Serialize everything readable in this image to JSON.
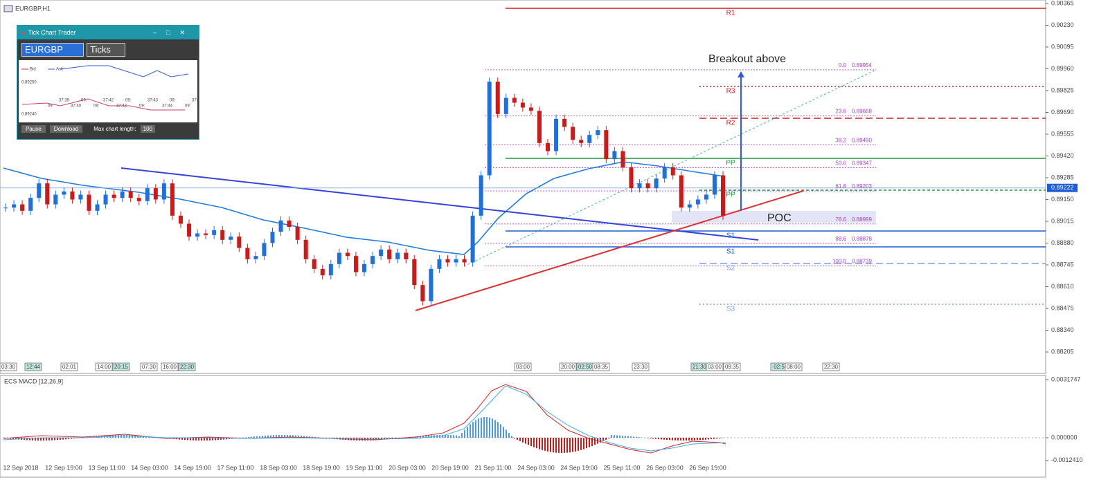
{
  "window": {
    "title": "EURGBP,H1"
  },
  "chart": {
    "type": "candlestick",
    "closes": [
      0.891,
      0.8912,
      0.8908,
      0.8916,
      0.8925,
      0.8912,
      0.8918,
      0.892,
      0.8915,
      0.8918,
      0.8908,
      0.8912,
      0.8918,
      0.8916,
      0.892,
      0.8916,
      0.8914,
      0.8922,
      0.8915,
      0.8925,
      0.8905,
      0.89,
      0.8892,
      0.8894,
      0.8893,
      0.8896,
      0.889,
      0.8892,
      0.8885,
      0.8878,
      0.888,
      0.8888,
      0.8895,
      0.8902,
      0.8898,
      0.889,
      0.8878,
      0.8872,
      0.8868,
      0.8875,
      0.8882,
      0.888,
      0.887,
      0.8875,
      0.888,
      0.8884,
      0.8878,
      0.8882,
      0.8878,
      0.8862,
      0.8852,
      0.8872,
      0.8878,
      0.8876,
      0.8878,
      0.8876,
      0.8905,
      0.893,
      0.8988,
      0.8968,
      0.8978,
      0.8975,
      0.8972,
      0.897,
      0.895,
      0.8945,
      0.8965,
      0.896,
      0.8952,
      0.895,
      0.8955,
      0.8958,
      0.894,
      0.8945,
      0.8935,
      0.8922,
      0.8925,
      0.8922,
      0.8928,
      0.8935,
      0.893,
      0.891,
      0.8912,
      0.8915,
      0.8918,
      0.893,
      0.8905
    ],
    "ylim": [
      0.90365,
      0.88205
    ],
    "yticks": [
      0.90365,
      {
        "value": 0.9023,
        "label": "0.90230"
      },
      0.90095,
      {
        "value": 0.8996,
        "label": "0.89960"
      },
      0.89825,
      {
        "value": 0.8969,
        "label": "0.89690"
      },
      0.89555,
      {
        "value": 0.8942,
        "label": "0.89420"
      },
      0.89285,
      {
        "value": 0.8915,
        "label": "0.89150"
      },
      0.89015,
      {
        "value": 0.8888,
        "label": "0.88880"
      },
      0.88745,
      {
        "value": 0.8861,
        "label": "0.88610"
      },
      0.88475,
      {
        "value": 0.8834,
        "label": "0.88340"
      },
      0.88205
    ],
    "current_price": 0.89222,
    "x_labels": [
      "12 Sep 2018",
      "12 Sep 19:00",
      "13 Sep 11:00",
      "14 Sep 03:00",
      "14 Sep 19:00",
      "17 Sep 11:00",
      "18 Sep 03:00",
      "18 Sep 19:00",
      "19 Sep 11:00",
      "20 Sep 03:00",
      "20 Sep 19:00",
      "21 Sep 11:00",
      "24 Sep 03:00",
      "24 Sep 19:00",
      "25 Sep 11:00",
      "26 Sep 03:00",
      "26 Sep 19:00"
    ],
    "time_tags": [
      "03:30",
      "12:44",
      "02:01",
      "14:00",
      "20:15",
      "07:30",
      "16:00",
      "22:30",
      "03:00",
      "20:00",
      "02:50",
      "08:35",
      "23:30",
      "21:30",
      "03:00",
      "09:35",
      "02:5",
      "08:00",
      "22:30"
    ],
    "pivots": [
      "R1",
      "R3",
      "R2",
      "PP",
      "PP",
      "S1",
      "S1",
      "S2",
      "S3"
    ],
    "fib": [
      {
        "ratio": "0.0",
        "price": 0.89954
      },
      {
        "ratio": "23.6",
        "price": 0.89668
      },
      {
        "ratio": "38.2",
        "price": {
          "value": 0.8949,
          "label": "0.89490"
        }
      },
      {
        "ratio": "50.0",
        "price": 0.89347
      },
      {
        "ratio": "61.8",
        "price": 0.89203
      },
      {
        "ratio": "78.6",
        "price": 0.88999
      },
      {
        "ratio": "88.6",
        "price": 0.88878
      },
      {
        "ratio": "100.0",
        "price": 0.88739
      }
    ],
    "annotations": [
      "Breakout above",
      "POC"
    ]
  },
  "macd": {
    "title": "ECS MACD [12,26,9]",
    "yticks": [
      0.0031747,
      {
        "value": 0,
        "label": "0.000000"
      },
      -0.001241
    ],
    "tick_labels": [
      "0.0031747",
      "0.000000",
      "-0.0012410"
    ]
  },
  "widget": {
    "title": "Tick Chart Trader",
    "symbol": "EURGBP",
    "mode": "Ticks",
    "legend": [
      "Bid",
      "Ask"
    ],
    "price_high": "0.89250",
    "price_low": "0.89240",
    "times_top": [
      "37:39",
      "09:",
      "37:42",
      "09:",
      "37:43",
      "09:",
      "37:44"
    ],
    "times_bottom": [
      "09:",
      "37:40",
      "09:",
      "37:42",
      "09:",
      "37:44",
      "09:"
    ],
    "buttons": [
      "Pause",
      "Download"
    ],
    "max_label": "Max chart length:",
    "max_value": "100"
  }
}
